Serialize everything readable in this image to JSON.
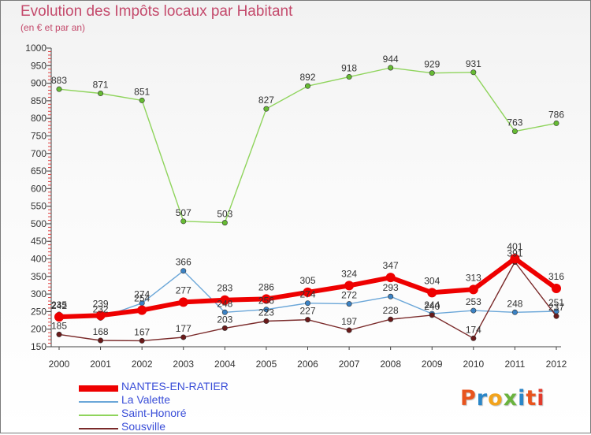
{
  "title": "Evolution des Impôts locaux par Habitant",
  "subtitle": "(en € et par an)",
  "logo": {
    "text": "Proxiti",
    "colors": [
      "#e8541e",
      "#2a86c8",
      "#f2a31c",
      "#6ab33e",
      "#2a86c8",
      "#e8541e",
      "#e33b2c"
    ]
  },
  "chart_data": {
    "type": "line",
    "title": "Evolution des Impôts locaux par Habitant",
    "subtitle": "(en € et par an)",
    "x": [
      "2000",
      "2001",
      "2002",
      "2003",
      "2004",
      "2005",
      "2006",
      "2007",
      "2008",
      "2009",
      "2010",
      "2011",
      "2012"
    ],
    "ylim": [
      150,
      1000
    ],
    "yticks": [
      150,
      200,
      250,
      300,
      350,
      400,
      450,
      500,
      550,
      600,
      650,
      700,
      750,
      800,
      850,
      900,
      950,
      1000
    ],
    "grid": false,
    "legend": "bottom-left",
    "series": [
      {
        "name": "Saint-Honoré",
        "color": "#8fd45c",
        "marker": "#66bb33",
        "width": 1.4,
        "labels": true,
        "values": [
          883,
          871,
          851,
          507,
          503,
          827,
          892,
          918,
          944,
          929,
          931,
          763,
          786
        ]
      },
      {
        "name": "La Valette",
        "color": "#6aa6d8",
        "marker": "#3b82c4",
        "width": 1.4,
        "labels": false,
        "values": [
          242,
          232,
          274,
          366,
          248,
          256,
          274,
          272,
          293,
          244,
          253,
          248,
          251
        ]
      },
      {
        "name": "Sousville",
        "color": "#7a2a2a",
        "marker": "#6b1a1a",
        "width": 1.4,
        "labels": false,
        "values": [
          185,
          168,
          167,
          177,
          203,
          223,
          227,
          197,
          228,
          240,
          174,
          391,
          237
        ]
      },
      {
        "name": "NANTES-EN-RATIER",
        "color": "#ee0000",
        "marker": "#ee0000",
        "width": 6,
        "labels": true,
        "values": [
          235,
          239,
          254,
          277,
          283,
          286,
          305,
          324,
          347,
          304,
          313,
          401,
          316
        ]
      }
    ],
    "annotations": [
      {
        "series": "La Valette",
        "x": "2000",
        "text": "242"
      },
      {
        "series": "La Valette",
        "x": "2001",
        "text": "232"
      },
      {
        "series": "La Valette",
        "x": "2002",
        "text": "274"
      },
      {
        "series": "La Valette",
        "x": "2003",
        "text": "366"
      },
      {
        "series": "La Valette",
        "x": "2004",
        "text": "248"
      },
      {
        "series": "La Valette",
        "x": "2005",
        "text": "256"
      },
      {
        "series": "La Valette",
        "x": "2006",
        "text": "274"
      },
      {
        "series": "La Valette",
        "x": "2007",
        "text": "272"
      },
      {
        "series": "La Valette",
        "x": "2008",
        "text": "293"
      },
      {
        "series": "La Valette",
        "x": "2009",
        "text": "244"
      },
      {
        "series": "La Valette",
        "x": "2010",
        "text": "253"
      },
      {
        "series": "La Valette",
        "x": "2011",
        "text": "248"
      },
      {
        "series": "La Valette",
        "x": "2012",
        "text": "251"
      },
      {
        "series": "Sousville",
        "x": "2000",
        "text": "185"
      },
      {
        "series": "Sousville",
        "x": "2001",
        "text": "168"
      },
      {
        "series": "Sousville",
        "x": "2002",
        "text": "167"
      },
      {
        "series": "Sousville",
        "x": "2003",
        "text": "177"
      },
      {
        "series": "Sousville",
        "x": "2004",
        "text": "203"
      },
      {
        "series": "Sousville",
        "x": "2005",
        "text": "223"
      },
      {
        "series": "Sousville",
        "x": "2006",
        "text": "227"
      },
      {
        "series": "Sousville",
        "x": "2007",
        "text": "197"
      },
      {
        "series": "Sousville",
        "x": "2008",
        "text": "228"
      },
      {
        "series": "Sousville",
        "x": "2009",
        "text": "240"
      },
      {
        "series": "Sousville",
        "x": "2010",
        "text": "174"
      },
      {
        "series": "Sousville",
        "x": "2011",
        "text": "391"
      },
      {
        "series": "Sousville",
        "x": "2012",
        "text": "237"
      }
    ]
  }
}
